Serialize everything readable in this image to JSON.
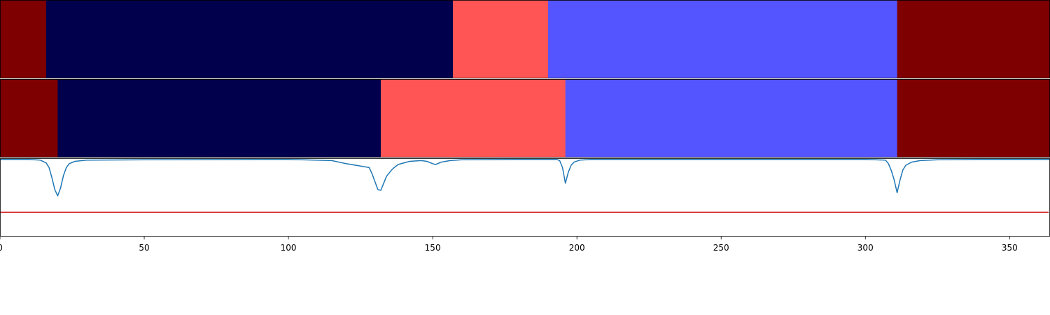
{
  "chart_data": [
    {
      "type": "segments",
      "panel": "top",
      "x_range": [
        0,
        364
      ],
      "segments": [
        {
          "start": 0,
          "end": 16,
          "color": "#7f0000"
        },
        {
          "start": 16,
          "end": 157,
          "color": "#00004c"
        },
        {
          "start": 157,
          "end": 190,
          "color": "#ff5555"
        },
        {
          "start": 190,
          "end": 311,
          "color": "#5555ff"
        },
        {
          "start": 311,
          "end": 364,
          "color": "#7f0000"
        }
      ]
    },
    {
      "type": "segments",
      "panel": "middle",
      "x_range": [
        0,
        364
      ],
      "segments": [
        {
          "start": 0,
          "end": 20,
          "color": "#7f0000"
        },
        {
          "start": 20,
          "end": 132,
          "color": "#00004c"
        },
        {
          "start": 132,
          "end": 196,
          "color": "#ff5555"
        },
        {
          "start": 196,
          "end": 311,
          "color": "#5555ff"
        },
        {
          "start": 311,
          "end": 364,
          "color": "#7f0000"
        }
      ]
    },
    {
      "type": "line",
      "panel": "bottom",
      "xlim": [
        0,
        364
      ],
      "ylim": [
        0,
        1
      ],
      "xticks": [
        0,
        50,
        100,
        150,
        200,
        250,
        300,
        350
      ],
      "threshold": {
        "value": 0.31,
        "color": "#d62728"
      },
      "series": [
        {
          "color": "#1f77b4",
          "points": [
            [
              0,
              0.985
            ],
            [
              10,
              0.985
            ],
            [
              14,
              0.975
            ],
            [
              16,
              0.94
            ],
            [
              17,
              0.88
            ],
            [
              18,
              0.75
            ],
            [
              19,
              0.6
            ],
            [
              20,
              0.52
            ],
            [
              21,
              0.62
            ],
            [
              22,
              0.78
            ],
            [
              23,
              0.88
            ],
            [
              24,
              0.93
            ],
            [
              26,
              0.96
            ],
            [
              30,
              0.975
            ],
            [
              50,
              0.98
            ],
            [
              100,
              0.985
            ],
            [
              115,
              0.97
            ],
            [
              120,
              0.93
            ],
            [
              125,
              0.9
            ],
            [
              128,
              0.88
            ],
            [
              129,
              0.8
            ],
            [
              130,
              0.7
            ],
            [
              131,
              0.6
            ],
            [
              132,
              0.59
            ],
            [
              133,
              0.68
            ],
            [
              134,
              0.77
            ],
            [
              136,
              0.86
            ],
            [
              138,
              0.92
            ],
            [
              142,
              0.96
            ],
            [
              146,
              0.97
            ],
            [
              148,
              0.96
            ],
            [
              150,
              0.93
            ],
            [
              151,
              0.92
            ],
            [
              153,
              0.95
            ],
            [
              156,
              0.97
            ],
            [
              160,
              0.98
            ],
            [
              180,
              0.985
            ],
            [
              193,
              0.985
            ],
            [
              194,
              0.97
            ],
            [
              195,
              0.88
            ],
            [
              196,
              0.68
            ],
            [
              197,
              0.82
            ],
            [
              198,
              0.91
            ],
            [
              199,
              0.95
            ],
            [
              201,
              0.975
            ],
            [
              205,
              0.985
            ],
            [
              250,
              0.985
            ],
            [
              300,
              0.985
            ],
            [
              307,
              0.975
            ],
            [
              308,
              0.93
            ],
            [
              309,
              0.84
            ],
            [
              310,
              0.72
            ],
            [
              311,
              0.56
            ],
            [
              312,
              0.72
            ],
            [
              313,
              0.85
            ],
            [
              314,
              0.91
            ],
            [
              316,
              0.95
            ],
            [
              319,
              0.97
            ],
            [
              325,
              0.98
            ],
            [
              340,
              0.985
            ],
            [
              364,
              0.985
            ]
          ]
        }
      ]
    }
  ]
}
